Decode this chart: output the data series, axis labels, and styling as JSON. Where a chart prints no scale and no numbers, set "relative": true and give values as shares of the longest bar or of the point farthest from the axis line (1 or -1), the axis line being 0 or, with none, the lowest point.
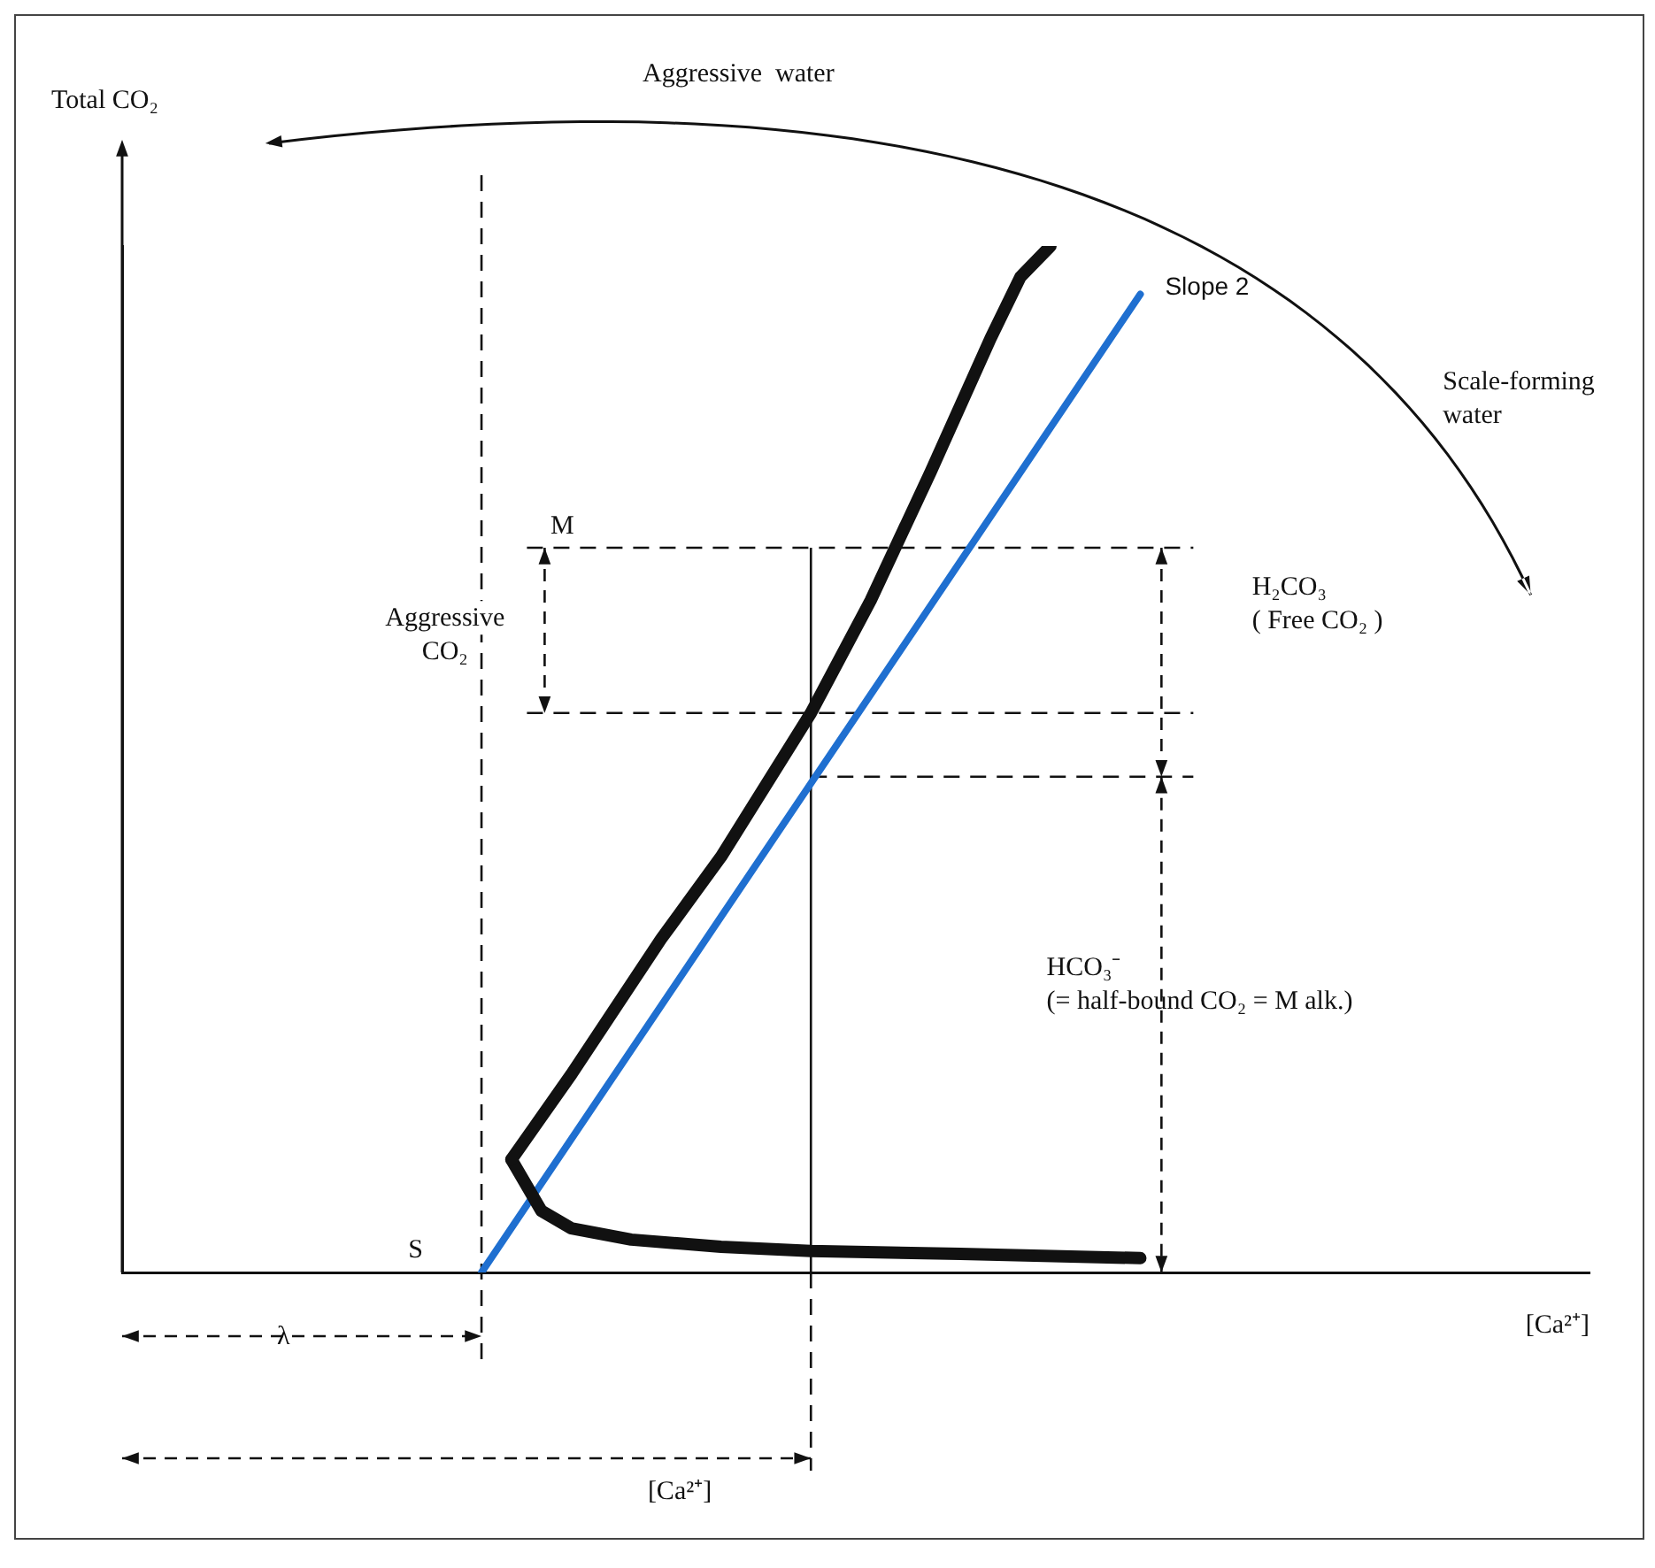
{
  "chart_data": {
    "type": "line",
    "relative": true,
    "xlabel": "[Ca²⁺]",
    "ylabel": "Total CO₂",
    "grid": false,
    "legend": false,
    "marker": "none",
    "categories": [
      null,
      null,
      null,
      null,
      null,
      null,
      null,
      null,
      null,
      null,
      null,
      null,
      null,
      null,
      null,
      null,
      null,
      null,
      null,
      null,
      null,
      null,
      null,
      null,
      null,
      null,
      null,
      null,
      null,
      null,
      null,
      null,
      null,
      null,
      null,
      null,
      null,
      null,
      null,
      null,
      null,
      null,
      null,
      null,
      null,
      null,
      null,
      null,
      null,
      null
    ],
    "series": [
      {
        "color": "#111111",
        "values": [
          null,
          null,
          null,
          null,
          null,
          null,
          null,
          null,
          null,
          null,
          null,
          null,
          null,
          0.11,
          null,
          0.193,
          null,
          null,
          0.325,
          null,
          0.405,
          null,
          null,
          0.545,
          null,
          0.655,
          null,
          0.78,
          null,
          0.91,
          0.97,
          1,
          null,
          null,
          null,
          null,
          null,
          null,
          null,
          null,
          null,
          null,
          null,
          null,
          null,
          null,
          null,
          null,
          null,
          null
        ]
      },
      {
        "color": "#111111",
        "values": [
          null,
          null,
          null,
          null,
          null,
          null,
          null,
          null,
          null,
          null,
          null,
          null,
          null,
          0.11,
          0.06,
          0.043,
          null,
          0.032,
          null,
          null,
          0.025,
          null,
          null,
          0.021,
          null,
          null,
          null,
          null,
          0.018,
          null,
          null,
          null,
          null,
          null,
          0.014,
          null,
          null,
          null,
          null,
          null,
          null,
          null,
          null,
          null,
          null,
          null,
          null,
          null,
          null,
          null
        ]
      },
      {
        "name": "Slope 2",
        "color": "#1f6fd0",
        "values": [
          null,
          null,
          null,
          null,
          null,
          null,
          null,
          null,
          null,
          null,
          null,
          null,
          0,
          null,
          null,
          null,
          null,
          null,
          null,
          null,
          null,
          null,
          null,
          null,
          null,
          null,
          null,
          null,
          null,
          null,
          null,
          null,
          null,
          null,
          0.953,
          null,
          null,
          null,
          null,
          null,
          null,
          null,
          null,
          null,
          null,
          null,
          null,
          null,
          null,
          null
        ]
      }
    ],
    "ref_lines": [
      {
        "axis": "y",
        "value": 0.706,
        "line_style": "dashed",
        "color": "#111111"
      },
      {
        "axis": "y",
        "value": 0.545,
        "line_style": "dashed",
        "color": "#111111"
      },
      {
        "axis": "y",
        "value": 0.483,
        "line_style": "dashed",
        "color": "#111111"
      }
    ],
    "annotations": [
      "M",
      "S",
      "λ",
      "[Ca²⁺]",
      "Aggressive\nCO₂",
      "H₂CO₃\n( Free CO₂ )",
      "HCO₃⁻\n(= half-bound CO₂ = M alk.)",
      "Aggressive  water",
      "Scale-forming\nwater"
    ]
  }
}
